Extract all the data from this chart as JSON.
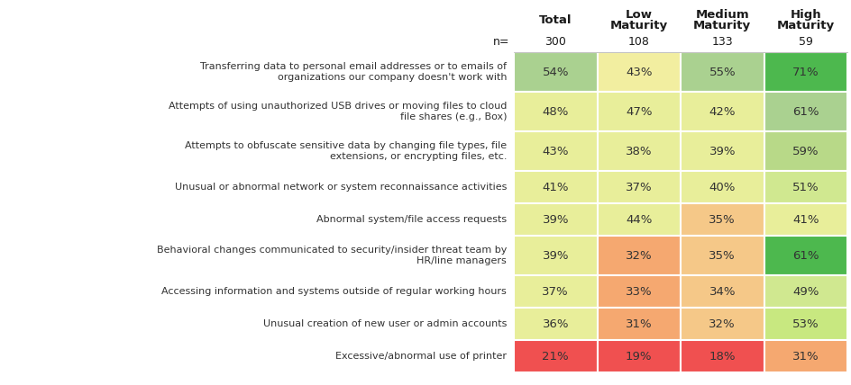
{
  "columns": [
    "Total",
    "Low\nMaturity",
    "Medium\nMaturity",
    "High\nMaturity"
  ],
  "n_values": [
    "300",
    "108",
    "133",
    "59"
  ],
  "rows": [
    {
      "label": "Transferring data to personal email addresses or to emails of\norganizations our company doesn't work with",
      "values": [
        "54%",
        "43%",
        "55%",
        "71%"
      ],
      "colors": [
        "#aad190",
        "#f2eea0",
        "#aad190",
        "#4db84e"
      ]
    },
    {
      "label": "Attempts of using unauthorized USB drives or moving files to cloud\nfile shares (e.g., Box)",
      "values": [
        "48%",
        "47%",
        "42%",
        "61%"
      ],
      "colors": [
        "#e8ee9a",
        "#e8ee9a",
        "#e8ee9a",
        "#aad190"
      ]
    },
    {
      "label": "Attempts to obfuscate sensitive data by changing file types, file\nextensions, or encrypting files, etc.",
      "values": [
        "43%",
        "38%",
        "39%",
        "59%"
      ],
      "colors": [
        "#e8ee9a",
        "#e8ee9a",
        "#e8ee9a",
        "#b8d988"
      ]
    },
    {
      "label": "Unusual or abnormal network or system reconnaissance activities",
      "values": [
        "41%",
        "37%",
        "40%",
        "51%"
      ],
      "colors": [
        "#e8ee9a",
        "#e8ee9a",
        "#e8ee9a",
        "#d0e890"
      ]
    },
    {
      "label": "Abnormal system/file access requests",
      "values": [
        "39%",
        "44%",
        "35%",
        "41%"
      ],
      "colors": [
        "#e8ee9a",
        "#e8ee9a",
        "#f5c888",
        "#e8ee9a"
      ]
    },
    {
      "label": "Behavioral changes communicated to security/insider threat team by\nHR/line managers",
      "values": [
        "39%",
        "32%",
        "35%",
        "61%"
      ],
      "colors": [
        "#e8ee9a",
        "#f5a870",
        "#f5c888",
        "#4db84e"
      ]
    },
    {
      "label": "Accessing information and systems outside of regular working hours",
      "values": [
        "37%",
        "33%",
        "34%",
        "49%"
      ],
      "colors": [
        "#e8ee9a",
        "#f5a870",
        "#f5c888",
        "#d0e890"
      ]
    },
    {
      "label": "Unusual creation of new user or admin accounts",
      "values": [
        "36%",
        "31%",
        "32%",
        "53%"
      ],
      "colors": [
        "#e8ee9a",
        "#f5a870",
        "#f5c888",
        "#c8e880"
      ]
    },
    {
      "label": "Excessive/abnormal use of printer",
      "values": [
        "21%",
        "19%",
        "18%",
        "31%"
      ],
      "colors": [
        "#f05050",
        "#f05050",
        "#f05050",
        "#f5a870"
      ]
    }
  ],
  "bg_color": "#ffffff",
  "text_color": "#333333",
  "header_color": "#1a1a1a"
}
